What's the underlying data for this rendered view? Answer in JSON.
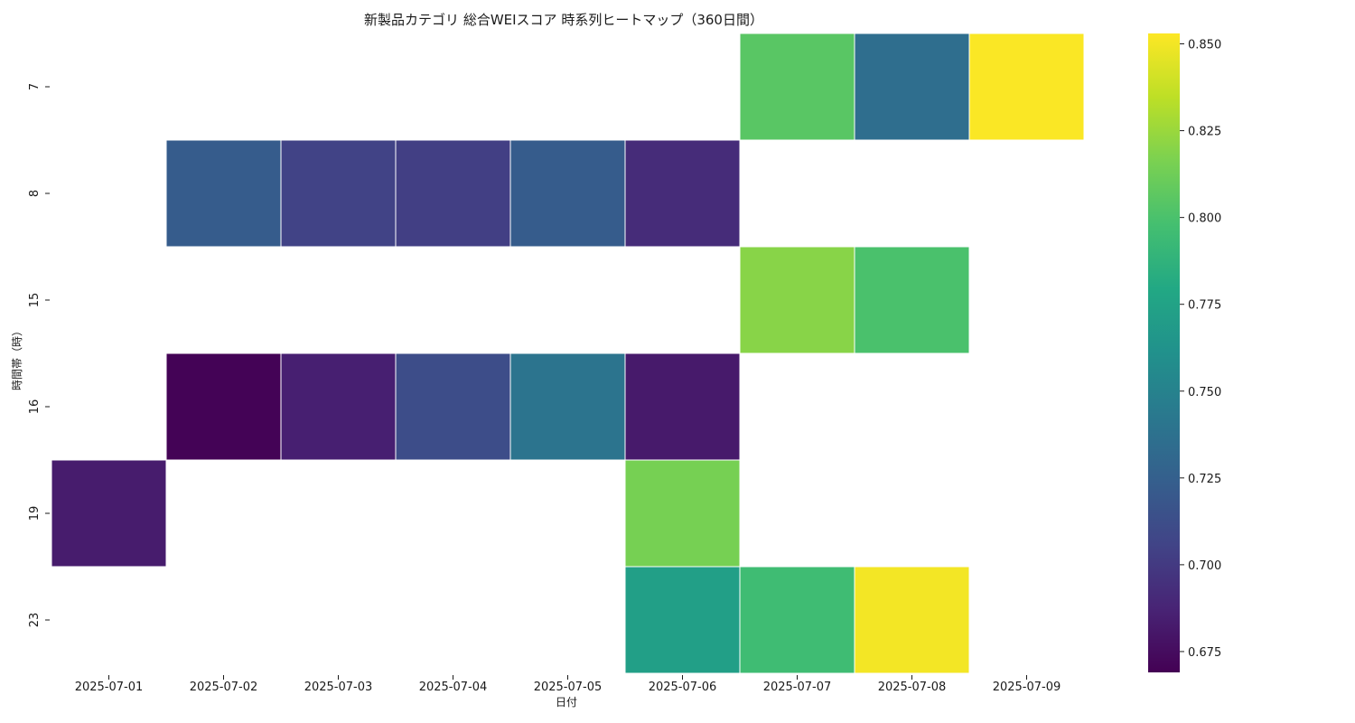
{
  "chart_data": {
    "type": "heatmap",
    "title": "新製品カテゴリ 総合WEIスコア 時系列ヒートマップ（360日間）",
    "xlabel": "日付",
    "ylabel": "時間帯（時）",
    "x_categories": [
      "2025-07-01",
      "2025-07-02",
      "2025-07-03",
      "2025-07-04",
      "2025-07-05",
      "2025-07-06",
      "2025-07-07",
      "2025-07-08",
      "2025-07-09"
    ],
    "y_categories": [
      "7",
      "8",
      "15",
      "16",
      "19",
      "23"
    ],
    "values": [
      [
        null,
        null,
        null,
        null,
        null,
        null,
        0.805,
        0.735,
        0.852
      ],
      [
        null,
        0.722,
        0.705,
        0.703,
        0.722,
        0.692,
        null,
        null,
        null
      ],
      [
        null,
        null,
        null,
        null,
        null,
        null,
        0.82,
        0.8,
        null
      ],
      [
        null,
        0.67,
        0.685,
        0.712,
        0.74,
        0.682,
        null,
        null,
        null
      ],
      [
        0.683,
        null,
        null,
        null,
        null,
        0.815,
        null,
        null,
        null
      ],
      [
        null,
        null,
        null,
        null,
        null,
        0.772,
        0.795,
        0.85,
        null
      ]
    ],
    "colorscale": "viridis",
    "vmin": 0.669,
    "vmax": 0.853,
    "colorbar_ticks": [
      "0.675",
      "0.700",
      "0.725",
      "0.750",
      "0.775",
      "0.800",
      "0.825",
      "0.850"
    ]
  }
}
